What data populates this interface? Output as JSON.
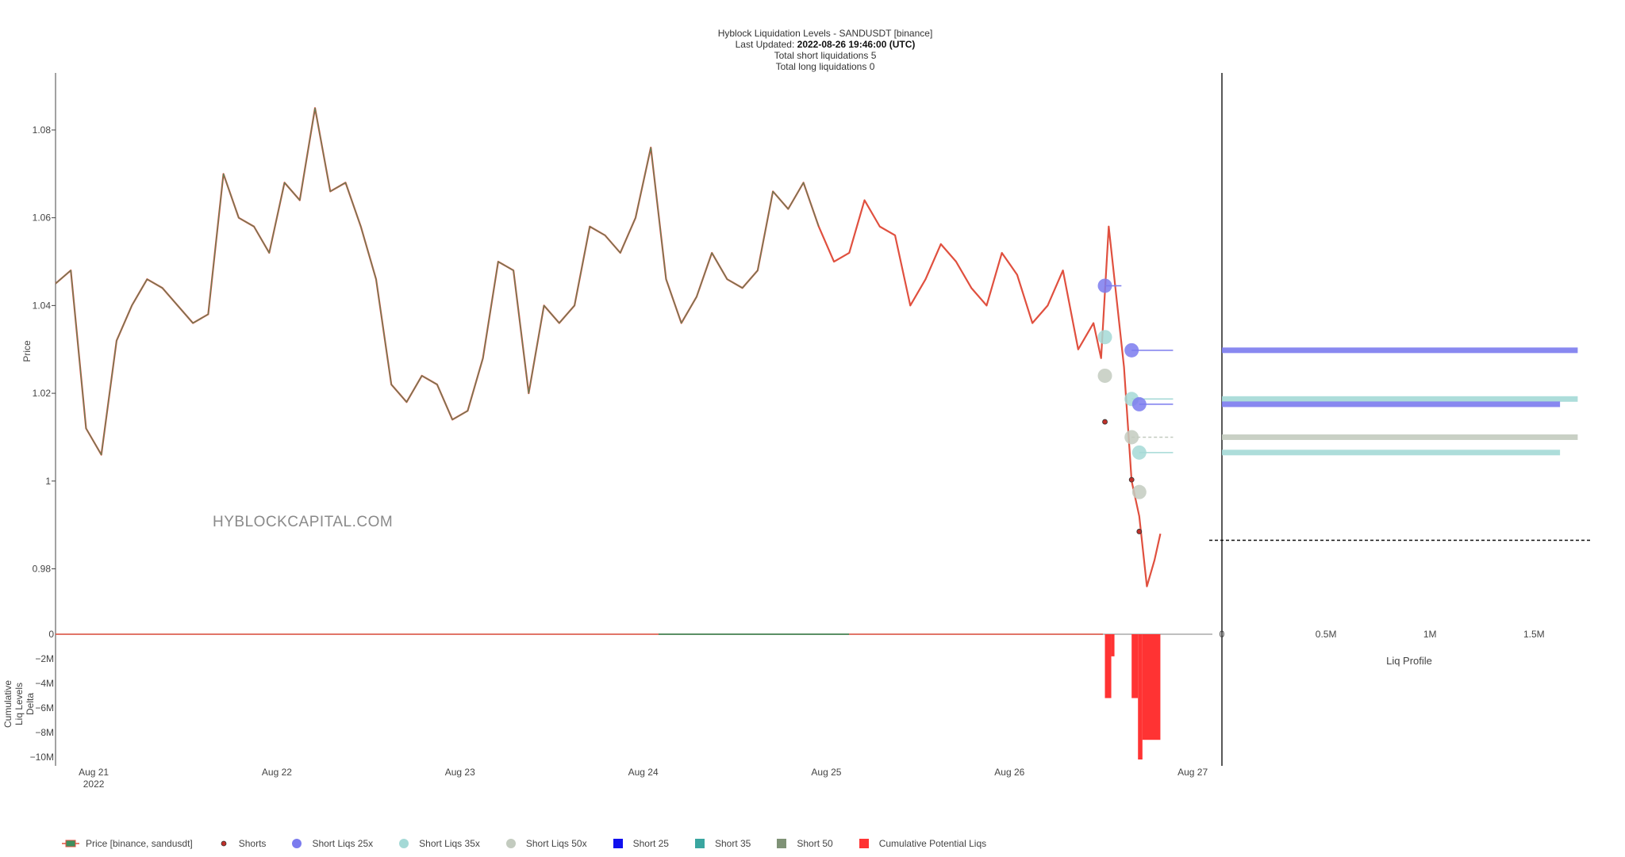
{
  "header": {
    "title": "Hyblock Liquidation Levels - SANDUSDT [binance]",
    "updated_label": "Last Updated: ",
    "updated_value": "2022-08-26 19:46:00 (UTC)",
    "short_liqs": "Total short liquidations 5",
    "long_liqs": "Total long liquidations 0"
  },
  "watermark": "HYBLOCKCAPITAL.COM",
  "colors": {
    "up": "#3d8f5e",
    "down": "#e0503f",
    "short25": "#7b7bee",
    "short35": "#a4d9d6",
    "short50": "#c3cbbf",
    "shorts_dot": "#c0302a",
    "cum": "#ff3333",
    "green_line": "#2e8b57"
  },
  "legend": [
    {
      "id": "price",
      "label": "Price [binance, sandusdt]",
      "icon": "candle-icon"
    },
    {
      "id": "shorts",
      "label": "Shorts",
      "icon": "dot-icon"
    },
    {
      "id": "s25x",
      "label": "Short Liqs 25x",
      "icon": "circle-icon"
    },
    {
      "id": "s35x",
      "label": "Short Liqs 35x",
      "icon": "circle-icon"
    },
    {
      "id": "s50x",
      "label": "Short Liqs 50x",
      "icon": "circle-icon"
    },
    {
      "id": "b25",
      "label": "Short 25",
      "icon": "square-icon"
    },
    {
      "id": "b35",
      "label": "Short 35",
      "icon": "square-icon"
    },
    {
      "id": "b50",
      "label": "Short 50",
      "icon": "square-icon"
    },
    {
      "id": "cum",
      "label": "Cumulative Potential Liqs",
      "icon": "square-icon"
    }
  ],
  "chart_data": {
    "type": "line",
    "title": "Hyblock Liquidation Levels - SANDUSDT [binance]",
    "price_axis": {
      "label": "Price",
      "range": [
        0.966,
        1.093
      ],
      "ticks": [
        "0.98",
        "1",
        "1.02",
        "1.04",
        "1.06",
        "1.08"
      ],
      "tick_values": [
        0.98,
        1.0,
        1.02,
        1.04,
        1.06,
        1.08
      ]
    },
    "x_axis": {
      "range": [
        "2022-08-20 19:00",
        "2022-08-27 03:00"
      ],
      "ticks": [
        {
          "t": "2022-08-21 00:00",
          "label": "Aug 21",
          "sub": "2022"
        },
        {
          "t": "2022-08-22 00:00",
          "label": "Aug 22",
          "sub": ""
        },
        {
          "t": "2022-08-23 00:00",
          "label": "Aug 23",
          "sub": ""
        },
        {
          "t": "2022-08-24 00:00",
          "label": "Aug 24",
          "sub": ""
        },
        {
          "t": "2022-08-25 00:00",
          "label": "Aug 25",
          "sub": ""
        },
        {
          "t": "2022-08-26 00:00",
          "label": "Aug 26",
          "sub": ""
        },
        {
          "t": "2022-08-27 00:00",
          "label": "Aug 27",
          "sub": ""
        }
      ]
    },
    "price_series": {
      "name": "Price [binance, sandusdt]",
      "x": [
        "2022-08-20 19:00",
        "2022-08-20 21:00",
        "2022-08-20 23:00",
        "2022-08-21 01:00",
        "2022-08-21 03:00",
        "2022-08-21 05:00",
        "2022-08-21 07:00",
        "2022-08-21 09:00",
        "2022-08-21 11:00",
        "2022-08-21 13:00",
        "2022-08-21 15:00",
        "2022-08-21 17:00",
        "2022-08-21 19:00",
        "2022-08-21 21:00",
        "2022-08-21 23:00",
        "2022-08-22 01:00",
        "2022-08-22 03:00",
        "2022-08-22 05:00",
        "2022-08-22 07:00",
        "2022-08-22 09:00",
        "2022-08-22 11:00",
        "2022-08-22 13:00",
        "2022-08-22 15:00",
        "2022-08-22 17:00",
        "2022-08-22 19:00",
        "2022-08-22 21:00",
        "2022-08-22 23:00",
        "2022-08-23 01:00",
        "2022-08-23 03:00",
        "2022-08-23 05:00",
        "2022-08-23 07:00",
        "2022-08-23 09:00",
        "2022-08-23 11:00",
        "2022-08-23 13:00",
        "2022-08-23 15:00",
        "2022-08-23 17:00",
        "2022-08-23 19:00",
        "2022-08-23 21:00",
        "2022-08-23 23:00",
        "2022-08-24 01:00",
        "2022-08-24 03:00",
        "2022-08-24 05:00",
        "2022-08-24 07:00",
        "2022-08-24 09:00",
        "2022-08-24 11:00",
        "2022-08-24 13:00",
        "2022-08-24 15:00",
        "2022-08-24 17:00",
        "2022-08-24 19:00",
        "2022-08-24 21:00",
        "2022-08-24 23:00",
        "2022-08-25 01:00",
        "2022-08-25 03:00",
        "2022-08-25 05:00",
        "2022-08-25 07:00",
        "2022-08-25 09:00",
        "2022-08-25 11:00",
        "2022-08-25 13:00",
        "2022-08-25 15:00",
        "2022-08-25 17:00",
        "2022-08-25 19:00",
        "2022-08-25 21:00",
        "2022-08-25 23:00",
        "2022-08-26 01:00",
        "2022-08-26 03:00",
        "2022-08-26 05:00",
        "2022-08-26 07:00",
        "2022-08-26 09:00",
        "2022-08-26 11:00",
        "2022-08-26 12:00",
        "2022-08-26 13:00",
        "2022-08-26 14:00",
        "2022-08-26 15:00",
        "2022-08-26 16:00",
        "2022-08-26 17:00",
        "2022-08-26 18:00",
        "2022-08-26 19:00",
        "2022-08-26 19:46"
      ],
      "y": [
        1.045,
        1.048,
        1.012,
        1.006,
        1.032,
        1.04,
        1.046,
        1.044,
        1.04,
        1.036,
        1.038,
        1.07,
        1.06,
        1.058,
        1.052,
        1.068,
        1.064,
        1.085,
        1.066,
        1.068,
        1.058,
        1.046,
        1.022,
        1.018,
        1.024,
        1.022,
        1.014,
        1.016,
        1.028,
        1.05,
        1.048,
        1.02,
        1.04,
        1.036,
        1.04,
        1.058,
        1.056,
        1.052,
        1.06,
        1.076,
        1.046,
        1.036,
        1.042,
        1.052,
        1.046,
        1.044,
        1.048,
        1.066,
        1.062,
        1.068,
        1.058,
        1.05,
        1.052,
        1.064,
        1.058,
        1.056,
        1.04,
        1.046,
        1.054,
        1.05,
        1.044,
        1.04,
        1.052,
        1.047,
        1.036,
        1.04,
        1.048,
        1.03,
        1.036,
        1.028,
        1.058,
        1.042,
        1.026,
        1.0,
        0.992,
        0.976,
        0.982,
        0.988
      ]
    },
    "shorts": [
      {
        "x": "2022-08-26 12:30",
        "y": 1.0135
      },
      {
        "x": "2022-08-26 16:00",
        "y": 1.0003
      },
      {
        "x": "2022-08-26 17:00",
        "y": 0.9885
      }
    ],
    "short_liqs_25x": [
      {
        "x": "2022-08-26 12:30",
        "y": 1.0445
      },
      {
        "x": "2022-08-26 16:00",
        "y": 1.0298
      },
      {
        "x": "2022-08-26 17:00",
        "y": 1.0175
      }
    ],
    "short_liqs_35x": [
      {
        "x": "2022-08-26 12:30",
        "y": 1.0328
      },
      {
        "x": "2022-08-26 16:00",
        "y": 1.0187
      },
      {
        "x": "2022-08-26 17:00",
        "y": 1.0065
      }
    ],
    "short_liqs_50x": [
      {
        "x": "2022-08-26 12:30",
        "y": 1.024
      },
      {
        "x": "2022-08-26 16:00",
        "y": 1.01
      },
      {
        "x": "2022-08-26 17:00",
        "y": 0.9975
      }
    ],
    "level_lines": [
      {
        "series": "Short 25",
        "y": 1.0298,
        "from": "2022-08-26 16:00",
        "to": "2022-08-26 19:46"
      },
      {
        "series": "Short 25",
        "y": 1.0175,
        "from": "2022-08-26 17:00",
        "to": "2022-08-26 19:46"
      },
      {
        "series": "Short 35",
        "y": 1.0187,
        "from": "2022-08-26 16:00",
        "to": "2022-08-26 19:46"
      },
      {
        "series": "Short 35",
        "y": 1.0065,
        "from": "2022-08-26 17:00",
        "to": "2022-08-26 19:46"
      },
      {
        "series": "Short 50",
        "y": 1.01,
        "from": "2022-08-26 16:00",
        "to": "2022-08-26 19:46"
      },
      {
        "series": "Short 25",
        "y": 1.0445,
        "from": "2022-08-26 12:30",
        "to": "2022-08-26 13:00"
      }
    ],
    "liq_profile": {
      "label": "Liq Profile",
      "ticks": [
        "0",
        "0.5M",
        "1M",
        "1.5M"
      ],
      "tick_values": [
        0,
        500000,
        1000000,
        1500000
      ],
      "range": [
        0,
        1800000
      ],
      "bars": [
        {
          "series": "Short 25",
          "y": 1.0298,
          "value": 1710000
        },
        {
          "series": "Short 35",
          "y": 1.0187,
          "value": 1710000
        },
        {
          "series": "Short 25",
          "y": 1.0175,
          "value": 1625000
        },
        {
          "series": "Short 50",
          "y": 1.01,
          "value": 1710000
        },
        {
          "series": "Short 35",
          "y": 1.0065,
          "value": 1625000
        }
      ],
      "current_price": 0.9865
    },
    "cumulative": {
      "name": "Cumulative Potential Liqs",
      "label": "Cumulative Liq Levels Delta",
      "ticks": [
        "0",
        "−2M",
        "−4M",
        "−6M",
        "−8M",
        "−10M"
      ],
      "tick_values": [
        0,
        -2000000,
        -4000000,
        -6000000,
        -8000000,
        -10000000
      ],
      "range": [
        -10200000,
        0
      ],
      "bars": [
        {
          "from": "2022-08-26 12:30",
          "to": "2022-08-26 13:20",
          "value": -5200000
        },
        {
          "from": "2022-08-26 13:20",
          "to": "2022-08-26 13:45",
          "value": -1800000
        },
        {
          "from": "2022-08-26 16:00",
          "to": "2022-08-26 16:50",
          "value": -5200000
        },
        {
          "from": "2022-08-26 16:50",
          "to": "2022-08-26 17:25",
          "value": -10200000
        },
        {
          "from": "2022-08-26 17:25",
          "to": "2022-08-26 19:46",
          "value": -8600000
        }
      ]
    }
  }
}
